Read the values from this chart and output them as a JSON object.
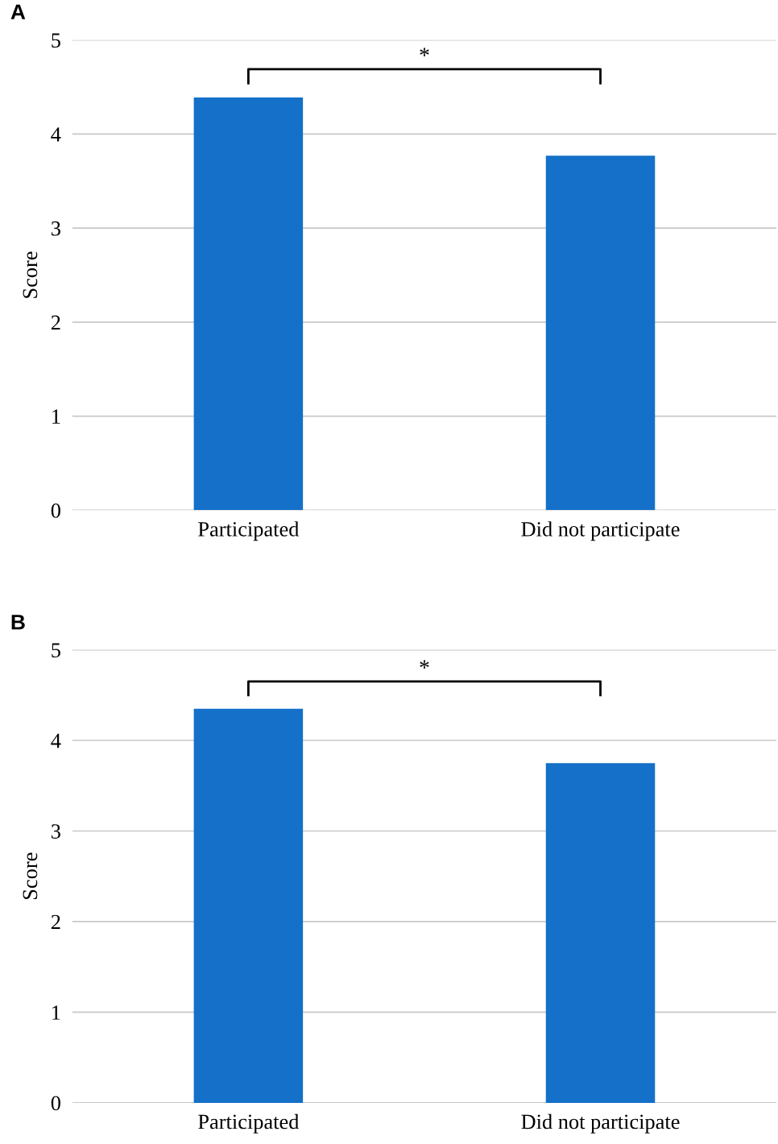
{
  "chart_data": [
    {
      "type": "bar",
      "title": "A",
      "ylabel": "Score",
      "categories": [
        "Participated",
        "Did not participate"
      ],
      "values": [
        4.39,
        3.77
      ],
      "color": "#1470c8",
      "ylim": [
        0,
        5
      ],
      "yticks": [
        0,
        1,
        2,
        3,
        4,
        5
      ],
      "grid": "y",
      "annotations": [
        "*"
      ]
    },
    {
      "type": "bar",
      "title": "B",
      "ylabel": "Score",
      "categories": [
        "Participated",
        "Did not participate"
      ],
      "values": [
        4.35,
        3.75
      ],
      "color": "#1470c8",
      "ylim": [
        0,
        5
      ],
      "yticks": [
        0,
        1,
        2,
        3,
        4,
        5
      ],
      "grid": "y",
      "annotations": [
        "*"
      ]
    }
  ]
}
